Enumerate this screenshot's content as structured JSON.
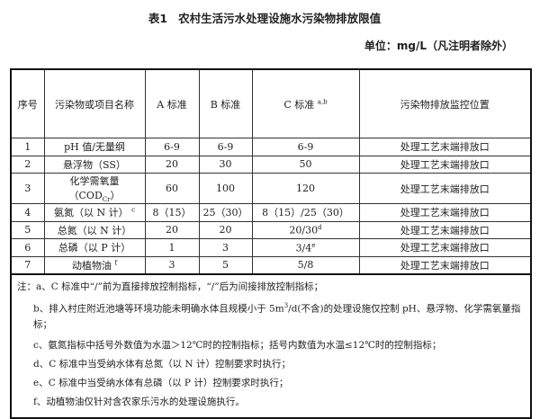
{
  "title": {
    "label": "表1",
    "text": "农村生活污水处理设施水污染物排放限值"
  },
  "unit": "单位：mg/L（凡注明者除外）",
  "table": {
    "headers": [
      "序号",
      "污染物或项目名称",
      "A 标准",
      "B 标准",
      "C 标准",
      "污染物排放监控位置"
    ],
    "header_c_sup": "a,b",
    "rows": [
      {
        "no": "1",
        "name": "pH 值/无量纲",
        "name_sup": "",
        "a": "6-9",
        "b": "6-9",
        "c": "6-9",
        "c_sup": "",
        "loc": "处理工艺末端排放口"
      },
      {
        "no": "2",
        "name": "悬浮物（SS）",
        "name_sup": "",
        "a": "20",
        "b": "30",
        "c": "50",
        "c_sup": "",
        "loc": "处理工艺末端排放口"
      },
      {
        "no": "3",
        "name": "化学需氧量（COD",
        "name_sub": "Cr",
        "name_tail": "）",
        "a": "60",
        "b": "100",
        "c": "120",
        "c_sup": "",
        "loc": "处理工艺末端排放口"
      },
      {
        "no": "4",
        "name": "氨氮（以 N 计）",
        "name_sup": "c",
        "a": "8（15）",
        "b": "25（30）",
        "c": "8（15）/25（30）",
        "c_sup": "",
        "loc": "处理工艺末端排放口"
      },
      {
        "no": "5",
        "name": "总氮（以 N 计）",
        "name_sup": "",
        "a": "20",
        "b": "20",
        "c": "20/30",
        "c_sup": "d",
        "loc": "处理工艺末端排放口"
      },
      {
        "no": "6",
        "name": "总磷（以 P 计）",
        "name_sup": "",
        "a": "1",
        "b": "3",
        "c": "3/4",
        "c_sup": "e",
        "loc": "处理工艺末端排放口"
      },
      {
        "no": "7",
        "name": "动植物油",
        "name_sup": "f",
        "a": "3",
        "b": "5",
        "c": "5/8",
        "c_sup": "",
        "loc": "处理工艺末端排放口"
      }
    ]
  },
  "notes": {
    "a": "注：a、C 标准中“/”前为直接排放控制指标，“/”后为间接排放控制指标；",
    "b1": "b、排入村庄附近池塘等环境功能未明确水体且规模小于 5m",
    "b_sup": "3",
    "b2": "/d(不含)的处理设施仅控制 pH、悬浮物、化学需氧量指标；",
    "c": "c、氨氮指标中括号外数值为水温＞12℃时的控制指标；括号内数值为水温≤12℃时的控制指标；",
    "d": "d、C 标准中当受纳水体有总氮（以 N 计）控制要求时执行；",
    "e": "e、C 标准中当受纳水体有总磷（以 P 计）控制要求时执行；",
    "f": "f、动植物油仅针对含农家乐污水的处理设施执行。"
  }
}
